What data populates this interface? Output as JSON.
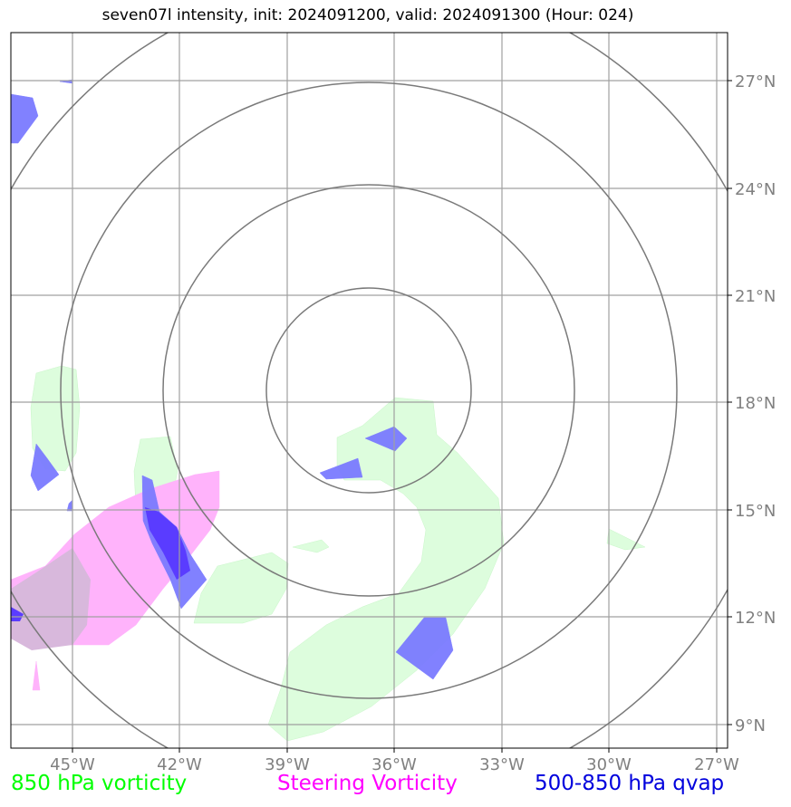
{
  "title": "seven07l intensity, init: 2024091200, valid: 2024091300 (Hour: 024)",
  "map": {
    "lon_labels": [
      "45°W",
      "42°W",
      "39°W",
      "36°W",
      "33°W",
      "30°W",
      "27°W"
    ],
    "lat_labels": [
      "27°N",
      "24°N",
      "21°N",
      "18°N",
      "15°N",
      "12°N",
      "9°N"
    ],
    "center": {
      "lon": -37.0,
      "lat": 18.5
    },
    "range_rings_count": 4
  },
  "legend": {
    "green": "850 hPa vorticity",
    "magenta": "Steering Vorticity",
    "blue": "500-850 hPa qvap"
  },
  "colors": {
    "green": "#00ff00",
    "magenta": "#ff00ff",
    "blue": "#0000dd",
    "green_fill": "#ddfddd",
    "magenta_fill": "#ffb3fb",
    "blue_fill": "#7b7bff",
    "grid": "#a0a0a0",
    "ring": "#7a7a7a"
  }
}
